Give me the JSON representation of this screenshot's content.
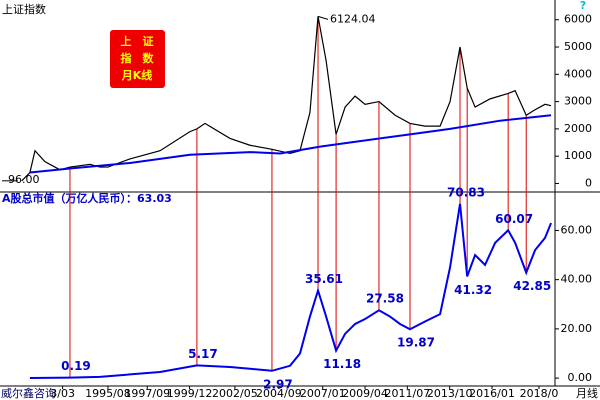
{
  "chart_data": [
    {
      "type": "line",
      "title": "上证指数",
      "badge": [
        "上　证",
        "指　数",
        "月K线"
      ],
      "badge_color": "#ee0000",
      "badge_text_color": "#ffff00",
      "corner_mark": "?",
      "xlim": [
        1989.84,
        2019.35
      ],
      "ylim": [
        -240,
        6650
      ],
      "y2ticks": [
        0,
        1000,
        2000,
        3000,
        4000,
        5000,
        6000
      ],
      "link_color": "#dd0000",
      "series": [
        {
          "color": "#000000",
          "x": [
            1991.0,
            1991.43,
            1991.7,
            1992.23,
            1993.03,
            1993.56,
            1994.62,
            1995.15,
            1995.58,
            1996.75,
            1998.35,
            1999.94,
            2000.31,
            2000.74,
            2002.07,
            2003.13,
            2004.3,
            2005.26,
            2005.79,
            2006.32,
            2006.75,
            2007.18,
            2007.71,
            2008.19,
            2008.72,
            2009.25,
            2009.99,
            2010.85,
            2011.64,
            2012.44,
            2013.24,
            2013.77,
            2014.3,
            2014.68,
            2015.1,
            2015.9,
            2016.86,
            2017.23,
            2017.82,
            2018.29,
            2018.82,
            2019.14
          ],
          "values": [
            96,
            400,
            1200,
            800,
            500,
            600,
            700,
            600,
            600,
            900,
            1200,
            1900,
            2000,
            2200,
            1650,
            1400,
            1250,
            1100,
            1200,
            2600,
            6124.04,
            4500,
            1800,
            2800,
            3200,
            2900,
            3000,
            2500,
            2200,
            2100,
            2100,
            3000,
            5000,
            3500,
            2800,
            3100,
            3300,
            3400,
            2500,
            2700,
            2900,
            2850
          ],
          "value_labels": [
            "96.00",
            null,
            null,
            null,
            null,
            null,
            null,
            null,
            null,
            null,
            null,
            null,
            null,
            null,
            null,
            null,
            null,
            null,
            null,
            null,
            "6124.04",
            null,
            null,
            null,
            null,
            null,
            null,
            null,
            null,
            null,
            null,
            null,
            null,
            null,
            null,
            null,
            null,
            null,
            null,
            null,
            null,
            null
          ]
        },
        {
          "color": "#0000ee",
          "x": [
            1991.43,
            1993.56,
            1996.75,
            1999.94,
            2003.13,
            2004.73,
            2006.86,
            2008.45,
            2011.64,
            2013.77,
            2016.43,
            2019.14
          ],
          "values": [
            400,
            550,
            750,
            1050,
            1150,
            1100,
            1350,
            1500,
            1800,
            2000,
            2300,
            2500
          ]
        }
      ]
    },
    {
      "type": "line",
      "title": "A股总市值（万亿人民币）：63.03",
      "source": "威尔鑫咨询",
      "x_label": "月线",
      "xlim": [
        1989.84,
        2019.35
      ],
      "ylim": [
        -2.8,
        74.4
      ],
      "y2ticks": [
        {
          "value": 0,
          "label": "0.00"
        },
        {
          "value": 20,
          "label": "20.00"
        },
        {
          "value": 40,
          "label": "40.00"
        },
        {
          "value": 60,
          "label": "60.00"
        }
      ],
      "xticks": [
        {
          "value": 1993.17,
          "label": "3/03"
        },
        {
          "value": 1995.58,
          "label": "1995/08"
        },
        {
          "value": 1997.67,
          "label": "1997/09"
        },
        {
          "value": 1999.92,
          "label": "1999/12"
        },
        {
          "value": 2002.33,
          "label": "2002/05"
        },
        {
          "value": 2004.67,
          "label": "2004/09"
        },
        {
          "value": 2007.0,
          "label": "2007/01"
        },
        {
          "value": 2009.25,
          "label": "2009/04"
        },
        {
          "value": 2011.5,
          "label": "2011/07"
        },
        {
          "value": 2013.75,
          "label": "2013/10"
        },
        {
          "value": 2016.0,
          "label": "2016/01"
        },
        {
          "value": 2018.5,
          "label": "2018/0"
        }
      ],
      "series": [
        {
          "color": "#0000ee",
          "x": [
            1991.43,
            1993.56,
            1995.15,
            1996.75,
            1998.35,
            2000.31,
            2002.07,
            2003.13,
            2004.3,
            2005.26,
            2005.79,
            2006.32,
            2006.75,
            2007.18,
            2007.71,
            2008.19,
            2008.72,
            2009.25,
            2009.99,
            2010.58,
            2011.11,
            2011.64,
            2012.44,
            2013.24,
            2013.77,
            2014.3,
            2014.68,
            2015.1,
            2015.63,
            2016.17,
            2016.86,
            2017.23,
            2017.82,
            2018.29,
            2018.82,
            2019.14
          ],
          "values": [
            0.05,
            0.19,
            0.5,
            1.5,
            2.5,
            5.17,
            4.5,
            3.8,
            2.97,
            5,
            10,
            25,
            35.61,
            25,
            11.18,
            18,
            22,
            24,
            27.58,
            25,
            22,
            19.87,
            23,
            26,
            45,
            70.83,
            41.32,
            50,
            46,
            55,
            60.07,
            55,
            42.85,
            52,
            57,
            63.03
          ],
          "value_labels": [
            null,
            "0.19",
            null,
            null,
            null,
            "5.17",
            null,
            null,
            "2.97",
            null,
            null,
            null,
            "35.61",
            null,
            "11.18",
            null,
            null,
            null,
            "27.58",
            null,
            null,
            "19.87",
            null,
            null,
            null,
            "70.83",
            "41.32",
            null,
            null,
            null,
            "60.07",
            null,
            "42.85",
            null,
            null,
            null
          ]
        }
      ]
    }
  ]
}
